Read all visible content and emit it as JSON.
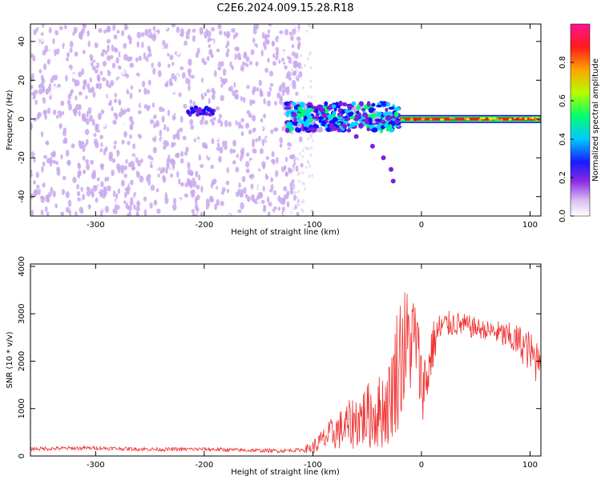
{
  "title": "C2E6.2024.009.15.28.R18",
  "chart_data": [
    {
      "type": "heatmap",
      "xlabel": "Height of straight line (km)",
      "ylabel": "Frequency (Hz)",
      "xlim": [
        -360,
        110
      ],
      "ylim": [
        -50,
        49
      ],
      "xticks": [
        -300,
        -200,
        -100,
        0,
        100
      ],
      "yticks": [
        -40,
        -20,
        0,
        20,
        40
      ],
      "colorbar": {
        "label": "Normalized spectral amplitude",
        "range": [
          0,
          1
        ],
        "ticks": [
          0.0,
          0.2,
          0.4,
          0.6,
          0.8
        ],
        "colors": [
          "#ffffff",
          "#c9a8ee",
          "#7a1fe0",
          "#1010ff",
          "#00d8ff",
          "#00ff66",
          "#c8ff00",
          "#ffa000",
          "#ff0000",
          "#ff1493"
        ]
      },
      "features": {
        "noise_region_x": [
          -360,
          -110
        ],
        "signal_line_y": 0,
        "signal_line_x": [
          -20,
          110
        ],
        "branch_points": [
          {
            "x": -80,
            "y": -5
          },
          {
            "x": -60,
            "y": -9
          },
          {
            "x": -45,
            "y": -14
          },
          {
            "x": -35,
            "y": -20
          },
          {
            "x": -28,
            "y": -26
          },
          {
            "x": -26,
            "y": -32
          }
        ]
      }
    },
    {
      "type": "line",
      "xlabel": "Height of straight line (km)",
      "ylabel": "SNR (10 * v/v)",
      "xlim": [
        -360,
        110
      ],
      "ylim": [
        0,
        4050
      ],
      "xticks": [
        -300,
        -200,
        -100,
        0,
        100
      ],
      "yticks": [
        0,
        1000,
        2000,
        3000,
        4000
      ],
      "grid": false,
      "series": [
        {
          "color": "#f03030",
          "points": [
            [
              -360,
              150
            ],
            [
              -330,
              160
            ],
            [
              -300,
              170
            ],
            [
              -270,
              150
            ],
            [
              -240,
              140
            ],
            [
              -200,
              145
            ],
            [
              -160,
              120
            ],
            [
              -130,
              110
            ],
            [
              -110,
              130
            ],
            [
              -100,
              180
            ],
            [
              -90,
              350
            ],
            [
              -80,
              500
            ],
            [
              -70,
              600
            ],
            [
              -60,
              750
            ],
            [
              -50,
              850
            ],
            [
              -40,
              900
            ],
            [
              -30,
              1100
            ],
            [
              -25,
              1600
            ],
            [
              -20,
              2100
            ],
            [
              -15,
              2300
            ],
            [
              -10,
              2400
            ],
            [
              -5,
              2500
            ],
            [
              0,
              1500
            ],
            [
              5,
              1600
            ],
            [
              10,
              2300
            ],
            [
              15,
              2600
            ],
            [
              20,
              2750
            ],
            [
              30,
              2800
            ],
            [
              40,
              2750
            ],
            [
              50,
              2700
            ],
            [
              60,
              2650
            ],
            [
              70,
              2600
            ],
            [
              80,
              2500
            ],
            [
              90,
              2400
            ],
            [
              100,
              2200
            ],
            [
              105,
              2000
            ],
            [
              110,
              2300
            ]
          ],
          "spread": [
            [
              -360,
              40
            ],
            [
              -110,
              40
            ],
            [
              -100,
              150
            ],
            [
              -60,
              600
            ],
            [
              -30,
              900
            ],
            [
              -20,
              1500
            ],
            [
              0,
              800
            ],
            [
              20,
              300
            ],
            [
              60,
              200
            ],
            [
              110,
              500
            ]
          ]
        }
      ]
    }
  ]
}
